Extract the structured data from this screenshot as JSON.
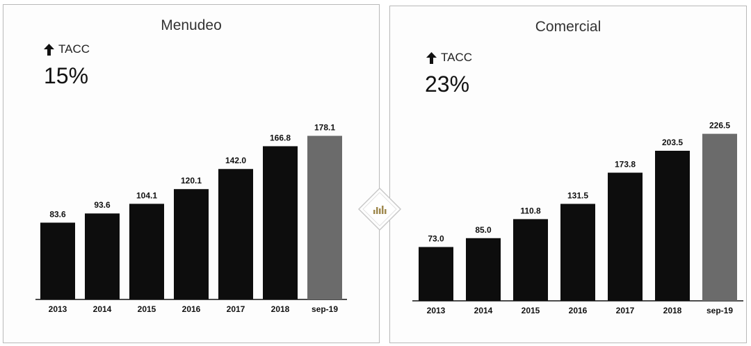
{
  "colors": {
    "bar": "#0d0d0d",
    "highlight": "#6b6b6b",
    "axis": "#111111",
    "diamond_border": "#c8c8c8",
    "diamond_icon": "#a08a50"
  },
  "icons": {
    "tacc_arrow": "arrow-up-icon",
    "center": "bar-chart-icon"
  },
  "chart_data": [
    {
      "type": "bar",
      "title": "Menudeo",
      "tacc_label": "TACC",
      "tacc_value": "15%",
      "categories": [
        "2013",
        "2014",
        "2015",
        "2016",
        "2017",
        "2018",
        "sep-19"
      ],
      "values": [
        83.6,
        93.6,
        104.1,
        120.1,
        142.0,
        166.8,
        178.1
      ],
      "value_labels": [
        "83.6",
        "93.6",
        "104.1",
        "120.1",
        "142.0",
        "166.8",
        "178.1"
      ],
      "highlight_index": 6,
      "ylim": [
        0,
        180
      ]
    },
    {
      "type": "bar",
      "title": "Comercial",
      "tacc_label": "TACC",
      "tacc_value": "23%",
      "categories": [
        "2013",
        "2014",
        "2015",
        "2016",
        "2017",
        "2018",
        "sep-19"
      ],
      "values": [
        73.0,
        85.0,
        110.8,
        131.5,
        173.8,
        203.5,
        226.5
      ],
      "value_labels": [
        "73.0",
        "85.0",
        "110.8",
        "131.5",
        "173.8",
        "203.5",
        "226.5"
      ],
      "highlight_index": 6,
      "ylim": [
        0,
        228
      ]
    }
  ]
}
